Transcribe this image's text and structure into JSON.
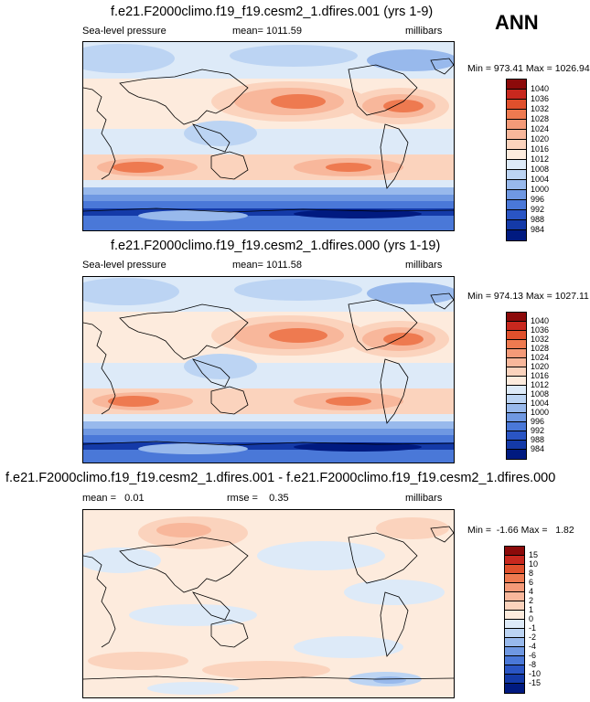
{
  "season": "ANN",
  "panels": [
    {
      "title": "f.e21.F2000climo.f19_f19.cesm2_1.dfires.001 (yrs 1-9)",
      "left": "Sea-level pressure",
      "center": "mean= 1011.59",
      "right": "millibars",
      "minmax": "Min = 973.41 Max = 1026.94",
      "colorbar": {
        "labels": [
          "1040",
          "1036",
          "1032",
          "1028",
          "1024",
          "1020",
          "1016",
          "1012",
          "1008",
          "1004",
          "1000",
          "996",
          "992",
          "988",
          "984"
        ],
        "colors": [
          "#8c0a0a",
          "#c8281e",
          "#e0502c",
          "#ee7a50",
          "#f49a78",
          "#f8b79b",
          "#fbd3bd",
          "#fdebdd",
          "#ddeaf8",
          "#bcd4f3",
          "#98b9ec",
          "#6f98e2",
          "#4a78d8",
          "#2a55c4",
          "#143aa8",
          "#001a80"
        ]
      }
    },
    {
      "title": "f.e21.F2000climo.f19_f19.cesm2_1.dfires.000 (yrs 1-19)",
      "left": "Sea-level pressure",
      "center": "mean= 1011.58",
      "right": "millibars",
      "minmax": "Min = 974.13 Max = 1027.11",
      "colorbar": {
        "labels": [
          "1040",
          "1036",
          "1032",
          "1028",
          "1024",
          "1020",
          "1016",
          "1012",
          "1008",
          "1004",
          "1000",
          "996",
          "992",
          "988",
          "984"
        ],
        "colors": [
          "#8c0a0a",
          "#c8281e",
          "#e0502c",
          "#ee7a50",
          "#f49a78",
          "#f8b79b",
          "#fbd3bd",
          "#fdebdd",
          "#ddeaf8",
          "#bcd4f3",
          "#98b9ec",
          "#6f98e2",
          "#4a78d8",
          "#2a55c4",
          "#143aa8",
          "#001a80"
        ]
      }
    },
    {
      "title": "f.e21.F2000climo.f19_f19.cesm2_1.dfires.001 - f.e21.F2000climo.f19_f19.cesm2_1.dfires.000",
      "left": "mean =   0.01",
      "center": "rmse =    0.35",
      "right": "millibars",
      "minmax": "Min =  -1.66 Max =   1.82",
      "colorbar": {
        "labels": [
          "15",
          "10",
          "8",
          "6",
          "4",
          "2",
          "1",
          "0",
          "-1",
          "-2",
          "-4",
          "-6",
          "-8",
          "-10",
          "-15"
        ],
        "colors": [
          "#8c0a0a",
          "#c8281e",
          "#e0502c",
          "#ee7a50",
          "#f49a78",
          "#f8b79b",
          "#fbd3bd",
          "#fdebdd",
          "#ddeaf8",
          "#bcd4f3",
          "#98b9ec",
          "#6f98e2",
          "#4a78d8",
          "#2a55c4",
          "#143aa8",
          "#001a80"
        ]
      }
    }
  ]
}
